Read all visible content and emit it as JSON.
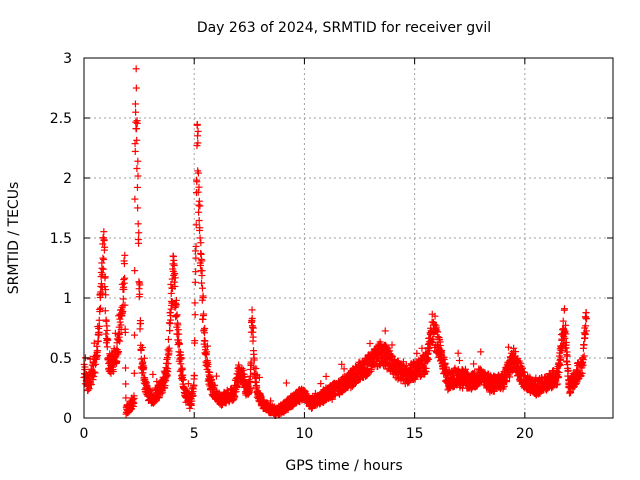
{
  "chart_data": {
    "type": "scatter",
    "title": "Day 263 of 2024, SRMTID for receiver gvil",
    "xlabel": "GPS time / hours",
    "ylabel": "SRMTID / TECUs",
    "xlim": [
      0,
      24
    ],
    "ylim": [
      0,
      3
    ],
    "x_ticks": [
      0,
      5,
      10,
      15,
      20
    ],
    "y_ticks": [
      0,
      0.5,
      1,
      1.5,
      2,
      2.5,
      3
    ],
    "x_tick_labels": [
      "0",
      "5",
      "10",
      "15",
      "20"
    ],
    "y_tick_labels": [
      "0",
      "0.5",
      "1",
      "1.5",
      "2",
      "2.5",
      "3"
    ],
    "grid": true,
    "marker": "+",
    "color": "#ff0000",
    "series": [
      {
        "name": "gvil",
        "profile": [
          [
            0.0,
            0.42
          ],
          [
            0.1,
            0.3
          ],
          [
            0.2,
            0.28
          ],
          [
            0.35,
            0.35
          ],
          [
            0.5,
            0.45
          ],
          [
            0.6,
            0.6
          ],
          [
            0.75,
            0.95
          ],
          [
            0.85,
            1.3
          ],
          [
            0.92,
            1.45
          ],
          [
            1.0,
            0.75
          ],
          [
            1.1,
            0.5
          ],
          [
            1.2,
            0.45
          ],
          [
            1.35,
            0.48
          ],
          [
            1.5,
            0.55
          ],
          [
            1.65,
            0.8
          ],
          [
            1.78,
            1.05
          ],
          [
            1.85,
            1.22
          ],
          [
            1.9,
            0.06
          ],
          [
            2.0,
            0.08
          ],
          [
            2.15,
            0.12
          ],
          [
            2.28,
            0.15
          ],
          [
            2.33,
            2.75
          ],
          [
            2.4,
            2.4
          ],
          [
            2.45,
            1.8
          ],
          [
            2.52,
            1.0
          ],
          [
            2.62,
            0.45
          ],
          [
            2.75,
            0.3
          ],
          [
            2.9,
            0.2
          ],
          [
            3.1,
            0.15
          ],
          [
            3.3,
            0.2
          ],
          [
            3.5,
            0.25
          ],
          [
            3.65,
            0.3
          ],
          [
            3.8,
            0.45
          ],
          [
            3.95,
            1.0
          ],
          [
            4.05,
            1.2
          ],
          [
            4.15,
            1.0
          ],
          [
            4.25,
            0.75
          ],
          [
            4.35,
            0.5
          ],
          [
            4.5,
            0.3
          ],
          [
            4.65,
            0.18
          ],
          [
            4.85,
            0.12
          ],
          [
            5.0,
            0.3
          ],
          [
            5.1,
            1.9
          ],
          [
            5.15,
            2.35
          ],
          [
            5.25,
            1.6
          ],
          [
            5.35,
            1.1
          ],
          [
            5.45,
            0.7
          ],
          [
            5.6,
            0.4
          ],
          [
            5.8,
            0.25
          ],
          [
            6.0,
            0.2
          ],
          [
            6.2,
            0.15
          ],
          [
            6.5,
            0.18
          ],
          [
            6.8,
            0.2
          ],
          [
            7.05,
            0.4
          ],
          [
            7.2,
            0.35
          ],
          [
            7.4,
            0.22
          ],
          [
            7.55,
            0.3
          ],
          [
            7.62,
            0.85
          ],
          [
            7.7,
            0.5
          ],
          [
            7.85,
            0.2
          ],
          [
            8.1,
            0.12
          ],
          [
            8.4,
            0.08
          ],
          [
            8.75,
            0.05
          ],
          [
            9.0,
            0.08
          ],
          [
            9.3,
            0.12
          ],
          [
            9.6,
            0.17
          ],
          [
            9.9,
            0.2
          ],
          [
            10.3,
            0.12
          ],
          [
            10.6,
            0.15
          ],
          [
            11.0,
            0.2
          ],
          [
            11.5,
            0.25
          ],
          [
            12.0,
            0.3
          ],
          [
            12.5,
            0.4
          ],
          [
            13.0,
            0.45
          ],
          [
            13.5,
            0.55
          ],
          [
            14.0,
            0.45
          ],
          [
            14.5,
            0.35
          ],
          [
            15.0,
            0.4
          ],
          [
            15.5,
            0.45
          ],
          [
            15.8,
            0.75
          ],
          [
            16.1,
            0.6
          ],
          [
            16.5,
            0.3
          ],
          [
            17.0,
            0.35
          ],
          [
            17.5,
            0.3
          ],
          [
            18.0,
            0.35
          ],
          [
            18.5,
            0.28
          ],
          [
            19.0,
            0.3
          ],
          [
            19.5,
            0.5
          ],
          [
            20.0,
            0.3
          ],
          [
            20.5,
            0.25
          ],
          [
            21.0,
            0.3
          ],
          [
            21.5,
            0.35
          ],
          [
            21.8,
            0.8
          ],
          [
            22.0,
            0.25
          ],
          [
            22.3,
            0.35
          ],
          [
            22.6,
            0.45
          ],
          [
            22.8,
            0.8
          ]
        ]
      }
    ]
  }
}
